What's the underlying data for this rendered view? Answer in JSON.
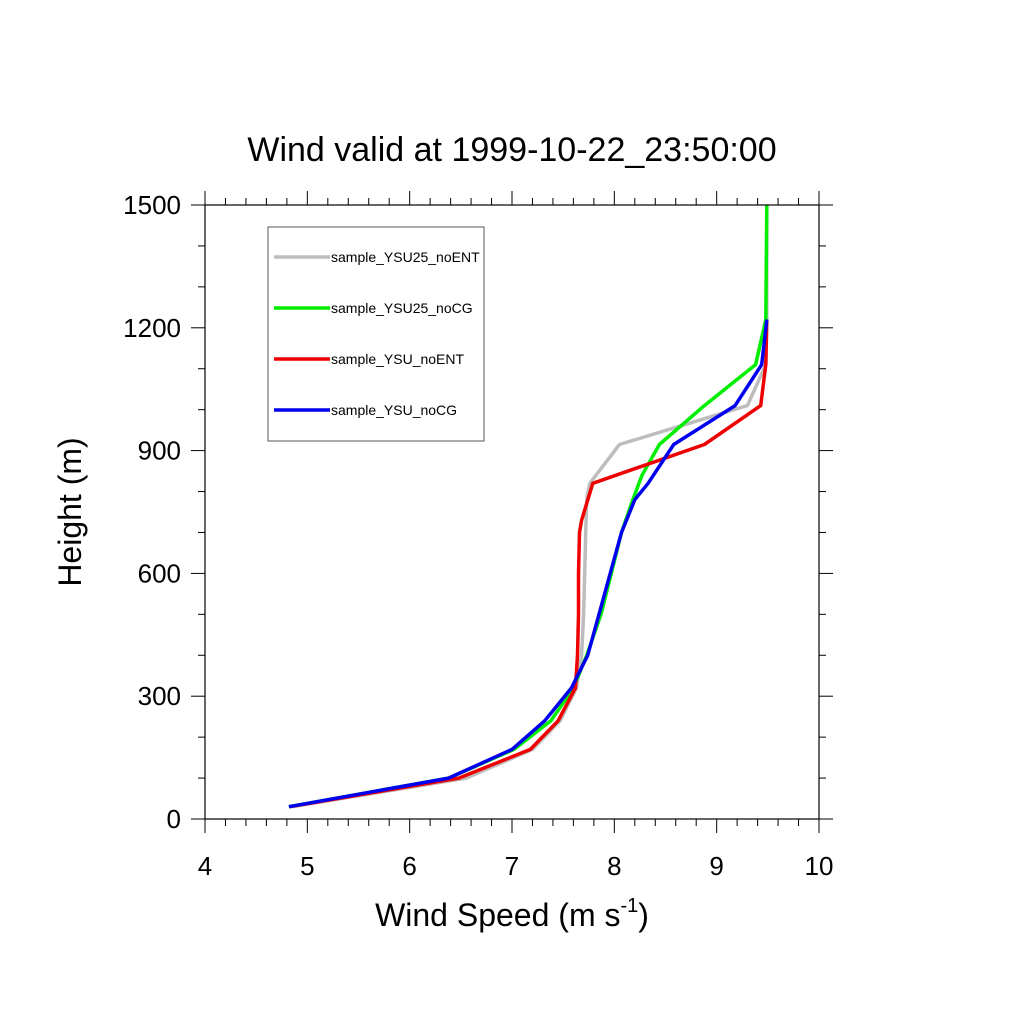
{
  "chart_data": {
    "type": "line",
    "title": "Wind valid at 1999-10-22_23:50:00",
    "xlabel": "Wind Speed (m s",
    "xlabel_sup": "-1",
    "xlabel_close": ")",
    "ylabel": "Height (m)",
    "xlim": [
      4,
      10
    ],
    "ylim": [
      0,
      1500
    ],
    "xticks": [
      4,
      5,
      6,
      7,
      8,
      9,
      10
    ],
    "yticks": [
      0,
      300,
      600,
      900,
      1200,
      1500
    ],
    "xtick_labels": [
      "4",
      "5",
      "6",
      "7",
      "8",
      "9",
      "10"
    ],
    "ytick_labels": [
      "0",
      "300",
      "600",
      "900",
      "1200",
      "1500"
    ],
    "legend_position": "top-left",
    "series": [
      {
        "name": "sample_YSU25_noENT",
        "color": "#bdbdbd",
        "x": [
          4.85,
          6.55,
          7.2,
          7.47,
          7.63,
          7.68,
          7.7,
          7.71,
          7.72,
          7.73,
          7.76,
          8.05,
          9.3,
          9.48,
          9.49,
          9.49
        ],
        "y": [
          30,
          100,
          170,
          240,
          320,
          400,
          500,
          600,
          700,
          780,
          820,
          915,
          1010,
          1110,
          1220,
          1500
        ]
      },
      {
        "name": "sample_YSU25_noCG",
        "color": "#00ee00",
        "x": [
          4.82,
          6.38,
          7.02,
          7.38,
          7.6,
          7.73,
          7.87,
          7.97,
          8.07,
          8.18,
          8.27,
          8.44,
          8.88,
          9.38,
          9.48,
          9.49
        ],
        "y": [
          30,
          100,
          170,
          240,
          320,
          400,
          500,
          600,
          700,
          780,
          840,
          915,
          1010,
          1110,
          1220,
          1500
        ]
      },
      {
        "name": "sample_YSU_noENT",
        "color": "#ee0000",
        "x": [
          4.83,
          6.48,
          7.18,
          7.45,
          7.62,
          7.64,
          7.65,
          7.65,
          7.66,
          7.68,
          7.79,
          8.88,
          9.43,
          9.48,
          9.49
        ],
        "y": [
          30,
          100,
          170,
          240,
          320,
          400,
          500,
          600,
          700,
          730,
          820,
          915,
          1010,
          1110,
          1220
        ]
      },
      {
        "name": "sample_YSU_noCG",
        "color": "#0000ee",
        "x": [
          4.82,
          6.38,
          7.0,
          7.32,
          7.58,
          7.74,
          7.85,
          7.96,
          8.07,
          8.2,
          8.33,
          8.58,
          9.18,
          9.44,
          9.49
        ],
        "y": [
          30,
          100,
          170,
          240,
          320,
          400,
          500,
          600,
          700,
          780,
          820,
          915,
          1010,
          1110,
          1220
        ]
      }
    ]
  }
}
